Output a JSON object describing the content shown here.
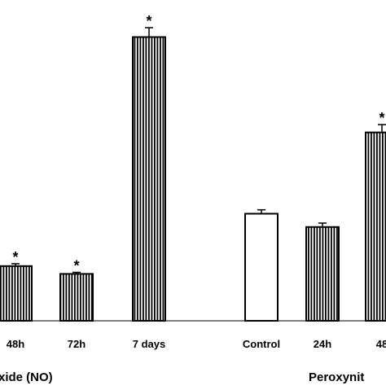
{
  "chart_data": {
    "type": "bar",
    "title": "",
    "xlabel": "",
    "ylabel": "",
    "ylim": [
      0,
      40
    ],
    "grid": false,
    "legend": "none",
    "categories": [
      "48h",
      "72h",
      "7 days",
      "Control",
      "24h",
      "48"
    ],
    "series": [
      {
        "values": [
          7.0,
          6.0,
          36.3,
          13.7,
          12.0,
          24.1
        ],
        "errors": [
          0.3,
          0.2,
          1.2,
          0.5,
          0.5,
          1.0
        ],
        "significant": [
          true,
          true,
          true,
          false,
          false,
          true
        ],
        "patterns": [
          "striped",
          "striped",
          "striped",
          "open",
          "striped",
          "striped"
        ]
      }
    ],
    "group_labels": [
      "xide (NO)",
      "Peroxynit"
    ],
    "significance_marker": "*",
    "colors": {
      "bar_stroke": "#000000",
      "stripe": "#000000",
      "bar_fill": "#ffffff",
      "axis": "#000000"
    }
  }
}
